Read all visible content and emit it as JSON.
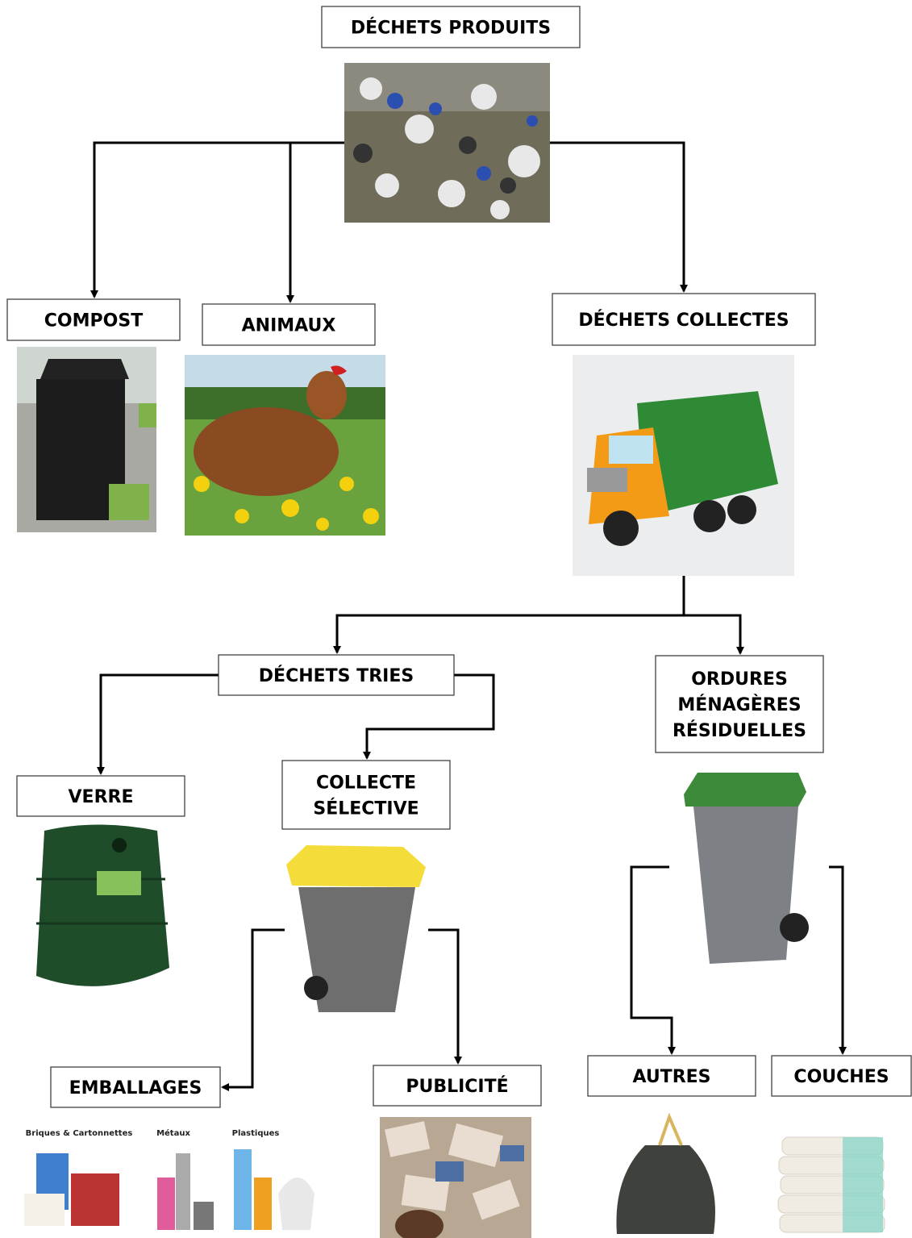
{
  "nodes": [
    {
      "id": "produits",
      "lines": [
        "DÉCHETS PRODUITS"
      ]
    },
    {
      "id": "compost",
      "lines": [
        "COMPOST"
      ]
    },
    {
      "id": "animaux",
      "lines": [
        "ANIMAUX"
      ]
    },
    {
      "id": "collectes",
      "lines": [
        "DÉCHETS COLLECTES"
      ]
    },
    {
      "id": "tries",
      "lines": [
        "DÉCHETS TRIES"
      ]
    },
    {
      "id": "omr",
      "lines": [
        "ORDURES",
        "MÉNAGÈRES",
        "RÉSIDUELLES"
      ]
    },
    {
      "id": "verre",
      "lines": [
        "VERRE"
      ]
    },
    {
      "id": "selective",
      "lines": [
        "COLLECTE",
        "SÉLECTIVE"
      ]
    },
    {
      "id": "emballages",
      "lines": [
        "EMBALLAGES"
      ]
    },
    {
      "id": "publicite",
      "lines": [
        "PUBLICITÉ"
      ]
    },
    {
      "id": "autres",
      "lines": [
        "AUTRES"
      ]
    },
    {
      "id": "couches",
      "lines": [
        "COUCHES"
      ]
    }
  ],
  "emballages_image": {
    "labels": [
      "Briques & Cartonnettes",
      "Métaux",
      "Plastiques"
    ]
  }
}
